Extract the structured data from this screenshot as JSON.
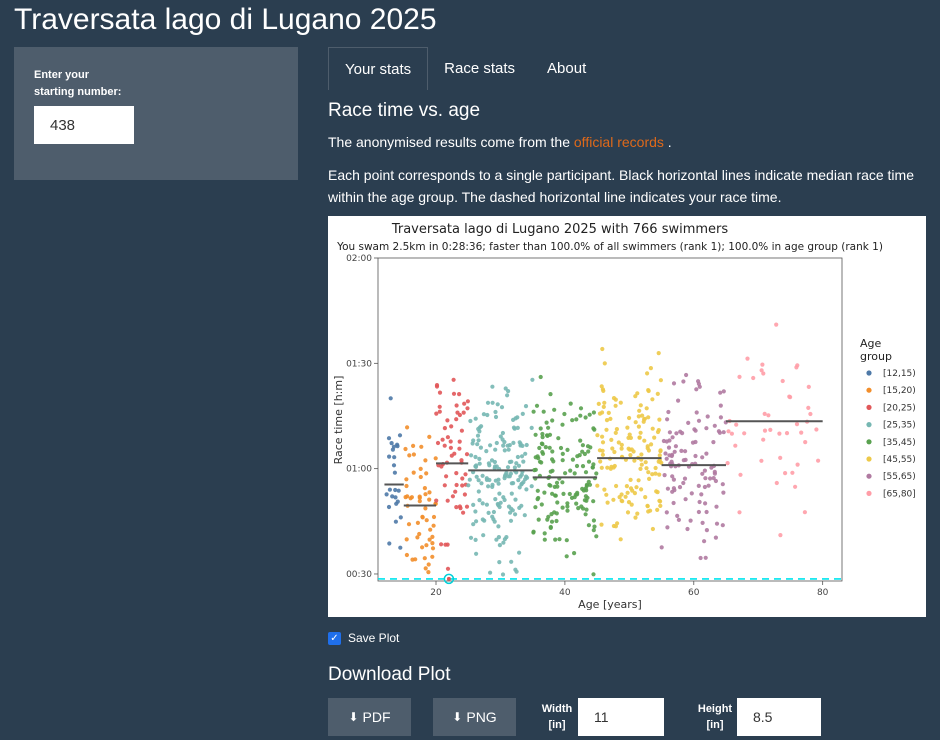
{
  "app": {
    "title": "Traversata lago di Lugano 2025"
  },
  "sidebar": {
    "label_line1": "Enter your",
    "label_line2": "starting number:",
    "starting_number": "438"
  },
  "tabs": [
    {
      "label": "Your stats",
      "active": true
    },
    {
      "label": "Race stats",
      "active": false
    },
    {
      "label": "About",
      "active": false
    }
  ],
  "main": {
    "section_title": "Race time vs. age",
    "intro_before": "The anonymised results come from the ",
    "intro_link": "official records",
    "intro_after": " .",
    "description": "Each point corresponds to a single participant. Black horizontal lines indicate median race time within the age group. The dashed horizontal line indicates your race time."
  },
  "chart_data": {
    "type": "scatter",
    "title": "Traversata lago di Lugano 2025 with 766 swimmers",
    "subtitle": "You swam 2.5km in 0:28:36; faster than 100.0% of all swimmers (rank 1); 100.0% in age group (rank 1)",
    "xlabel": "Age [years]",
    "ylabel": "Race time [h:m]",
    "xlim": [
      11,
      83
    ],
    "ylim": [
      28,
      120
    ],
    "x_ticks": [
      20,
      40,
      60,
      80
    ],
    "y_ticks": [
      30,
      60,
      90,
      120
    ],
    "y_tick_labels": [
      "00:30",
      "01:00",
      "01:30",
      "02:00"
    ],
    "legend_title_line1": "Age",
    "legend_title_line2": "group",
    "legend_position": "right",
    "your_time_min": 28.6,
    "your_age": 22,
    "groups": [
      {
        "name": "[12,15)",
        "color": "#4e79a7",
        "range": [
          12,
          15
        ],
        "median_min": 55.5,
        "n": 25
      },
      {
        "name": "[15,20)",
        "color": "#f28e2b",
        "range": [
          15,
          20
        ],
        "median_min": 49.5,
        "n": 55
      },
      {
        "name": "[20,25)",
        "color": "#e15759",
        "range": [
          20,
          25
        ],
        "median_min": 61.5,
        "n": 60
      },
      {
        "name": "[25,35)",
        "color": "#76b7b2",
        "range": [
          25,
          35
        ],
        "median_min": 59.5,
        "n": 170
      },
      {
        "name": "[35,45)",
        "color": "#59a14f",
        "range": [
          35,
          45
        ],
        "median_min": 57.5,
        "n": 150
      },
      {
        "name": "[45,55)",
        "color": "#edc948",
        "range": [
          45,
          55
        ],
        "median_min": 63.0,
        "n": 150
      },
      {
        "name": "[55,65)",
        "color": "#b07aa1",
        "range": [
          55,
          65
        ],
        "median_min": 61.0,
        "n": 110
      },
      {
        "name": "[65,80]",
        "color": "#ff9da7",
        "range": [
          65,
          80
        ],
        "median_min": 73.5,
        "n": 46
      }
    ]
  },
  "controls": {
    "save_plot_label": "Save Plot",
    "save_plot_checked": true,
    "download_title": "Download Plot",
    "pdf_label": "PDF",
    "png_label": "PNG",
    "width_label_1": "Width",
    "width_label_2": "[in]",
    "width_value": "11",
    "height_label_1": "Height",
    "height_label_2": "[in]",
    "height_value": "8.5",
    "download_icon": "download-icon"
  }
}
